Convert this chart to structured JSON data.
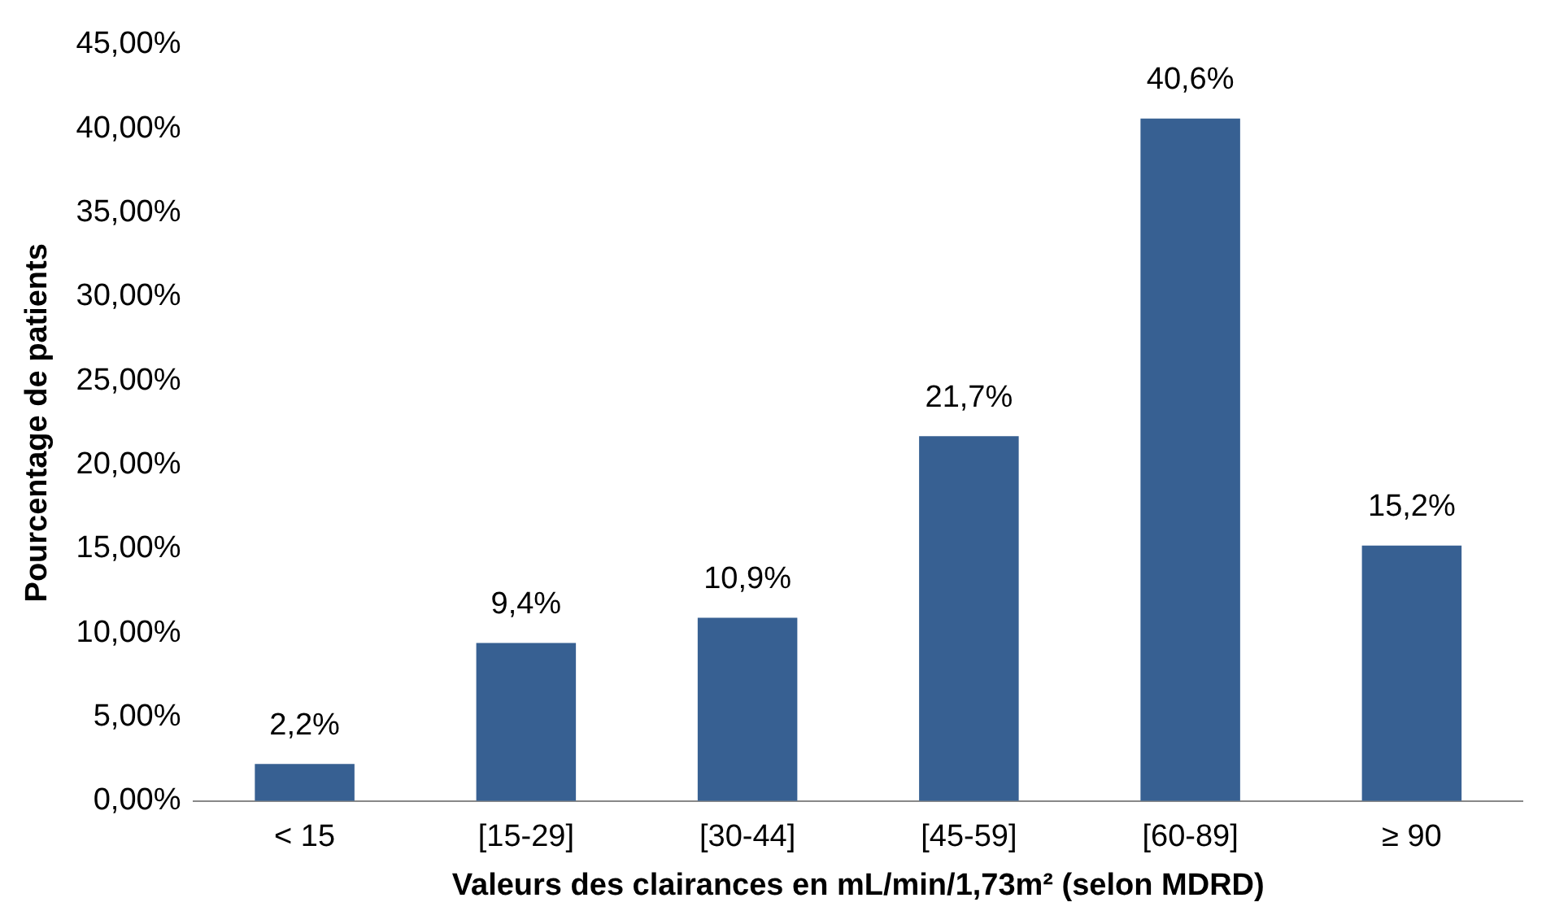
{
  "chart_data": {
    "type": "bar",
    "xlabel": "Valeurs des clairances en mL/min/1,73m² (selon MDRD)",
    "ylabel": "Pourcentage de patients",
    "categories": [
      "< 15",
      "[15-29]",
      "[30-44]",
      "[45-59]",
      "[60-89]",
      "≥ 90"
    ],
    "values": [
      2.2,
      9.4,
      10.9,
      21.7,
      40.6,
      15.2
    ],
    "value_labels": [
      "2,2%",
      "9,4%",
      "10,9%",
      "21,7%",
      "40,6%",
      "15,2%"
    ],
    "color": "#376092",
    "ylim": [
      0,
      45
    ],
    "yticks": [
      {
        "value": 0,
        "label": "0,00%"
      },
      {
        "value": 5,
        "label": "5,00%"
      },
      {
        "value": 10,
        "label": "10,00%"
      },
      {
        "value": 15,
        "label": "15,00%"
      },
      {
        "value": 20,
        "label": "20,00%"
      },
      {
        "value": 25,
        "label": "25,00%"
      },
      {
        "value": 30,
        "label": "30,00%"
      },
      {
        "value": 35,
        "label": "35,00%"
      },
      {
        "value": 40,
        "label": "40,00%"
      },
      {
        "value": 45,
        "label": "45,00%"
      }
    ],
    "grid": false,
    "legend": false
  }
}
